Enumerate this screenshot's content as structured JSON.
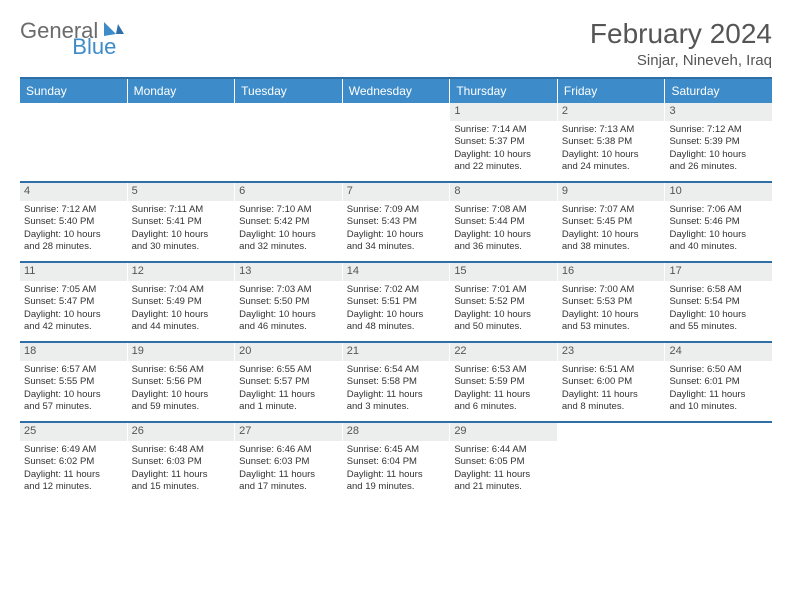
{
  "brand": {
    "general": "General",
    "blue": "Blue"
  },
  "title": "February 2024",
  "location": "Sinjar, Nineveh, Iraq",
  "colors": {
    "header_bg": "#3d8cc9",
    "border": "#2f6fa7",
    "daynum_bg": "#eceded",
    "text": "#333333",
    "logo_gray": "#6b6b6b",
    "logo_blue": "#3d8cc9"
  },
  "day_headers": [
    "Sunday",
    "Monday",
    "Tuesday",
    "Wednesday",
    "Thursday",
    "Friday",
    "Saturday"
  ],
  "weeks": [
    [
      {
        "empty": true
      },
      {
        "empty": true
      },
      {
        "empty": true
      },
      {
        "empty": true
      },
      {
        "n": "1",
        "sr": "Sunrise: 7:14 AM",
        "ss": "Sunset: 5:37 PM",
        "dl1": "Daylight: 10 hours",
        "dl2": "and 22 minutes."
      },
      {
        "n": "2",
        "sr": "Sunrise: 7:13 AM",
        "ss": "Sunset: 5:38 PM",
        "dl1": "Daylight: 10 hours",
        "dl2": "and 24 minutes."
      },
      {
        "n": "3",
        "sr": "Sunrise: 7:12 AM",
        "ss": "Sunset: 5:39 PM",
        "dl1": "Daylight: 10 hours",
        "dl2": "and 26 minutes."
      }
    ],
    [
      {
        "n": "4",
        "sr": "Sunrise: 7:12 AM",
        "ss": "Sunset: 5:40 PM",
        "dl1": "Daylight: 10 hours",
        "dl2": "and 28 minutes."
      },
      {
        "n": "5",
        "sr": "Sunrise: 7:11 AM",
        "ss": "Sunset: 5:41 PM",
        "dl1": "Daylight: 10 hours",
        "dl2": "and 30 minutes."
      },
      {
        "n": "6",
        "sr": "Sunrise: 7:10 AM",
        "ss": "Sunset: 5:42 PM",
        "dl1": "Daylight: 10 hours",
        "dl2": "and 32 minutes."
      },
      {
        "n": "7",
        "sr": "Sunrise: 7:09 AM",
        "ss": "Sunset: 5:43 PM",
        "dl1": "Daylight: 10 hours",
        "dl2": "and 34 minutes."
      },
      {
        "n": "8",
        "sr": "Sunrise: 7:08 AM",
        "ss": "Sunset: 5:44 PM",
        "dl1": "Daylight: 10 hours",
        "dl2": "and 36 minutes."
      },
      {
        "n": "9",
        "sr": "Sunrise: 7:07 AM",
        "ss": "Sunset: 5:45 PM",
        "dl1": "Daylight: 10 hours",
        "dl2": "and 38 minutes."
      },
      {
        "n": "10",
        "sr": "Sunrise: 7:06 AM",
        "ss": "Sunset: 5:46 PM",
        "dl1": "Daylight: 10 hours",
        "dl2": "and 40 minutes."
      }
    ],
    [
      {
        "n": "11",
        "sr": "Sunrise: 7:05 AM",
        "ss": "Sunset: 5:47 PM",
        "dl1": "Daylight: 10 hours",
        "dl2": "and 42 minutes."
      },
      {
        "n": "12",
        "sr": "Sunrise: 7:04 AM",
        "ss": "Sunset: 5:49 PM",
        "dl1": "Daylight: 10 hours",
        "dl2": "and 44 minutes."
      },
      {
        "n": "13",
        "sr": "Sunrise: 7:03 AM",
        "ss": "Sunset: 5:50 PM",
        "dl1": "Daylight: 10 hours",
        "dl2": "and 46 minutes."
      },
      {
        "n": "14",
        "sr": "Sunrise: 7:02 AM",
        "ss": "Sunset: 5:51 PM",
        "dl1": "Daylight: 10 hours",
        "dl2": "and 48 minutes."
      },
      {
        "n": "15",
        "sr": "Sunrise: 7:01 AM",
        "ss": "Sunset: 5:52 PM",
        "dl1": "Daylight: 10 hours",
        "dl2": "and 50 minutes."
      },
      {
        "n": "16",
        "sr": "Sunrise: 7:00 AM",
        "ss": "Sunset: 5:53 PM",
        "dl1": "Daylight: 10 hours",
        "dl2": "and 53 minutes."
      },
      {
        "n": "17",
        "sr": "Sunrise: 6:58 AM",
        "ss": "Sunset: 5:54 PM",
        "dl1": "Daylight: 10 hours",
        "dl2": "and 55 minutes."
      }
    ],
    [
      {
        "n": "18",
        "sr": "Sunrise: 6:57 AM",
        "ss": "Sunset: 5:55 PM",
        "dl1": "Daylight: 10 hours",
        "dl2": "and 57 minutes."
      },
      {
        "n": "19",
        "sr": "Sunrise: 6:56 AM",
        "ss": "Sunset: 5:56 PM",
        "dl1": "Daylight: 10 hours",
        "dl2": "and 59 minutes."
      },
      {
        "n": "20",
        "sr": "Sunrise: 6:55 AM",
        "ss": "Sunset: 5:57 PM",
        "dl1": "Daylight: 11 hours",
        "dl2": "and 1 minute."
      },
      {
        "n": "21",
        "sr": "Sunrise: 6:54 AM",
        "ss": "Sunset: 5:58 PM",
        "dl1": "Daylight: 11 hours",
        "dl2": "and 3 minutes."
      },
      {
        "n": "22",
        "sr": "Sunrise: 6:53 AM",
        "ss": "Sunset: 5:59 PM",
        "dl1": "Daylight: 11 hours",
        "dl2": "and 6 minutes."
      },
      {
        "n": "23",
        "sr": "Sunrise: 6:51 AM",
        "ss": "Sunset: 6:00 PM",
        "dl1": "Daylight: 11 hours",
        "dl2": "and 8 minutes."
      },
      {
        "n": "24",
        "sr": "Sunrise: 6:50 AM",
        "ss": "Sunset: 6:01 PM",
        "dl1": "Daylight: 11 hours",
        "dl2": "and 10 minutes."
      }
    ],
    [
      {
        "n": "25",
        "sr": "Sunrise: 6:49 AM",
        "ss": "Sunset: 6:02 PM",
        "dl1": "Daylight: 11 hours",
        "dl2": "and 12 minutes."
      },
      {
        "n": "26",
        "sr": "Sunrise: 6:48 AM",
        "ss": "Sunset: 6:03 PM",
        "dl1": "Daylight: 11 hours",
        "dl2": "and 15 minutes."
      },
      {
        "n": "27",
        "sr": "Sunrise: 6:46 AM",
        "ss": "Sunset: 6:03 PM",
        "dl1": "Daylight: 11 hours",
        "dl2": "and 17 minutes."
      },
      {
        "n": "28",
        "sr": "Sunrise: 6:45 AM",
        "ss": "Sunset: 6:04 PM",
        "dl1": "Daylight: 11 hours",
        "dl2": "and 19 minutes."
      },
      {
        "n": "29",
        "sr": "Sunrise: 6:44 AM",
        "ss": "Sunset: 6:05 PM",
        "dl1": "Daylight: 11 hours",
        "dl2": "and 21 minutes."
      },
      {
        "empty": true
      },
      {
        "empty": true
      }
    ]
  ]
}
